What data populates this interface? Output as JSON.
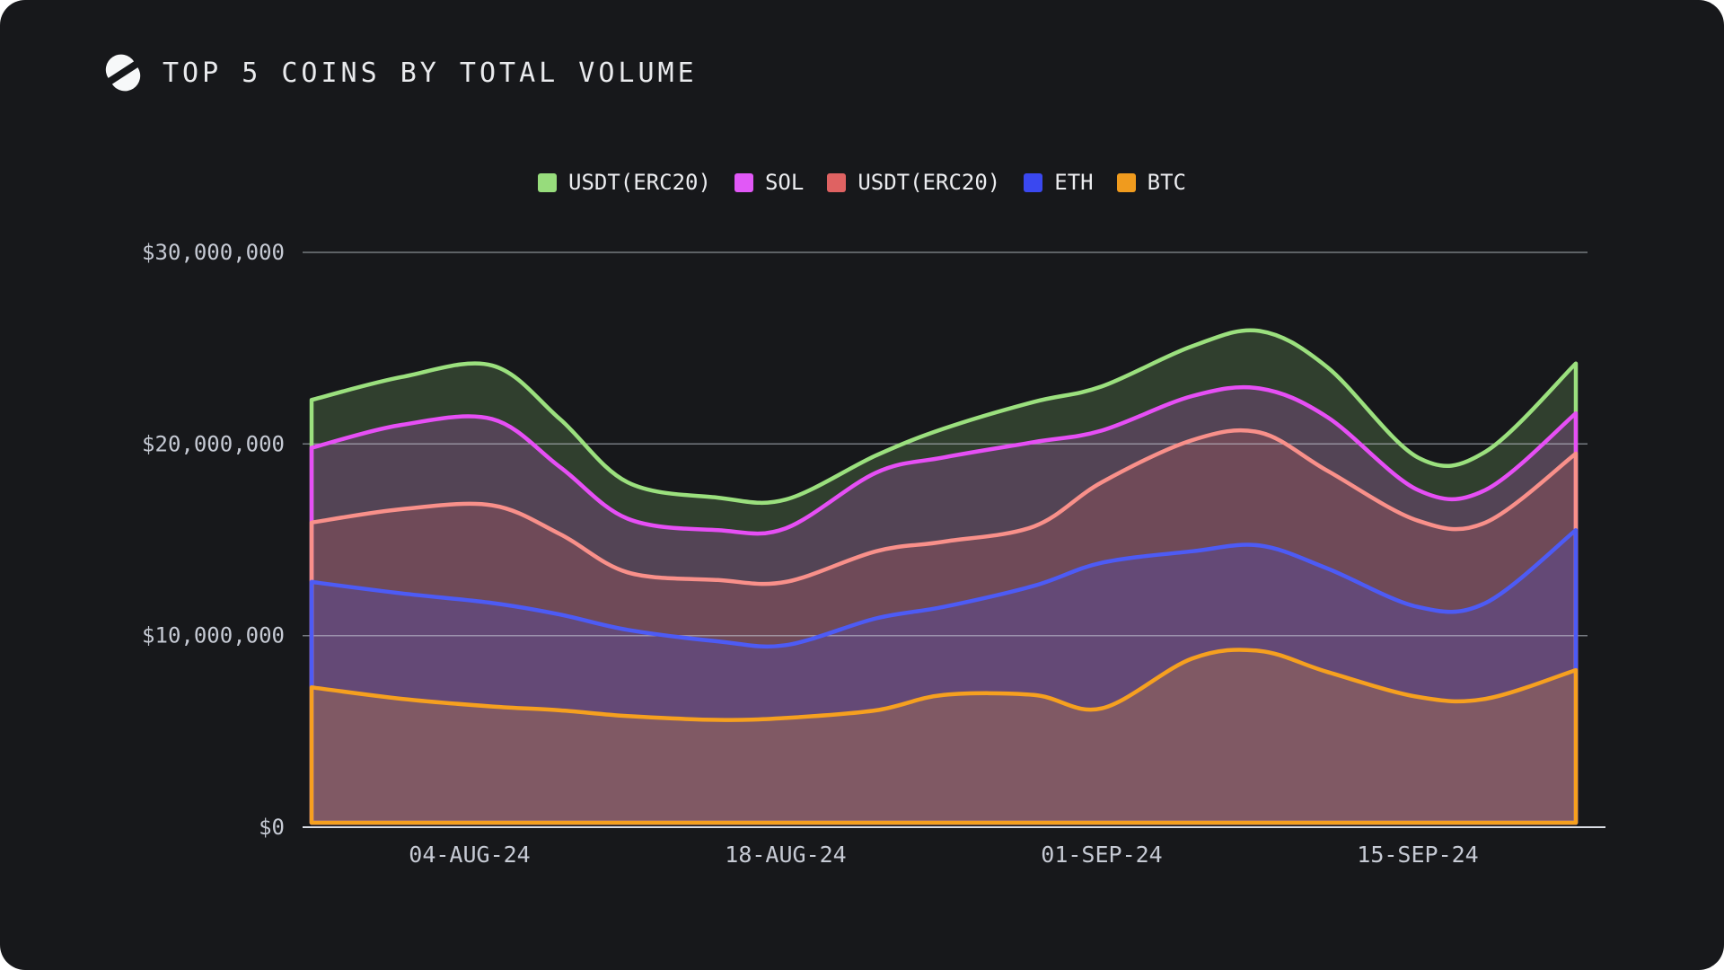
{
  "header": {
    "title": "TOP 5 COINS BY TOTAL VOLUME",
    "logo_icon": "split-circle-s"
  },
  "colors": {
    "background": "#17181B",
    "card_corner": "#FFFFFF",
    "title_text": "#E9EAED",
    "tick_text": "#C6CAD4",
    "gridline": "rgba(214,219,230,0.5)",
    "axis_line": "#D9DCE4",
    "logo": "#F7F8F9"
  },
  "chart_data": {
    "type": "area",
    "title": "TOP 5 COINS BY TOTAL VOLUME",
    "ylabel": "",
    "xlabel": "",
    "ylim": [
      0,
      30000000
    ],
    "grid": true,
    "legend_position": "top",
    "fill_opacity": 0.2,
    "unit": "USD",
    "x": [
      "28-JUL-24",
      "01-AUG-24",
      "05-AUG-24",
      "08-AUG-24",
      "11-AUG-24",
      "15-AUG-24",
      "18-AUG-24",
      "22-AUG-24",
      "25-AUG-24",
      "29-AUG-24",
      "01-SEP-24",
      "05-SEP-24",
      "08-SEP-24",
      "11-SEP-24",
      "15-SEP-24",
      "18-SEP-24",
      "22-SEP-24"
    ],
    "x_days": [
      0,
      4,
      8,
      11,
      14,
      18,
      21,
      25,
      28,
      32,
      35,
      39,
      42,
      45,
      49,
      52,
      56
    ],
    "x_tick_labels": [
      "04-AUG-24",
      "18-AUG-24",
      "01-SEP-24",
      "15-SEP-24"
    ],
    "x_tick_days": [
      7,
      21,
      35,
      49
    ],
    "y_ticks": [
      "$0",
      "$10,000,000",
      "$20,000,000",
      "$30,000,000"
    ],
    "y_tick_values": [
      0,
      10000000,
      20000000,
      30000000
    ],
    "series": [
      {
        "name": "USDT(ERC20)",
        "color": "#97DC7C",
        "line_color": "#9BE07E",
        "values": [
          22300000,
          23500000,
          24100000,
          21300000,
          18000000,
          17200000,
          17100000,
          19400000,
          20800000,
          22200000,
          23000000,
          25100000,
          25900000,
          24000000,
          19300000,
          19600000,
          24200000
        ]
      },
      {
        "name": "SOL",
        "color": "#E158F7",
        "line_color": "#E64FF5",
        "values": [
          19800000,
          21000000,
          21300000,
          18800000,
          16100000,
          15500000,
          15600000,
          18500000,
          19300000,
          20100000,
          20700000,
          22500000,
          22900000,
          21400000,
          17600000,
          17600000,
          21600000
        ]
      },
      {
        "name": "USDT(ERC20)",
        "color": "#DF6262",
        "line_color": "#F9908A",
        "values": [
          15900000,
          16600000,
          16800000,
          15300000,
          13300000,
          12900000,
          12800000,
          14400000,
          14900000,
          15700000,
          18000000,
          20200000,
          20600000,
          18600000,
          16000000,
          15900000,
          19500000
        ]
      },
      {
        "name": "ETH",
        "color": "#3A48F0",
        "line_color": "#4D5BF5",
        "values": [
          12800000,
          12200000,
          11700000,
          11100000,
          10300000,
          9700000,
          9500000,
          10900000,
          11500000,
          12600000,
          13800000,
          14400000,
          14700000,
          13500000,
          11500000,
          11700000,
          15500000
        ]
      },
      {
        "name": "BTC",
        "color": "#F09B1E",
        "line_color": "#F6A01F",
        "values": [
          7300000,
          6700000,
          6300000,
          6100000,
          5800000,
          5600000,
          5700000,
          6100000,
          6900000,
          6900000,
          6200000,
          8800000,
          9200000,
          8100000,
          6800000,
          6700000,
          8200000
        ]
      }
    ]
  }
}
